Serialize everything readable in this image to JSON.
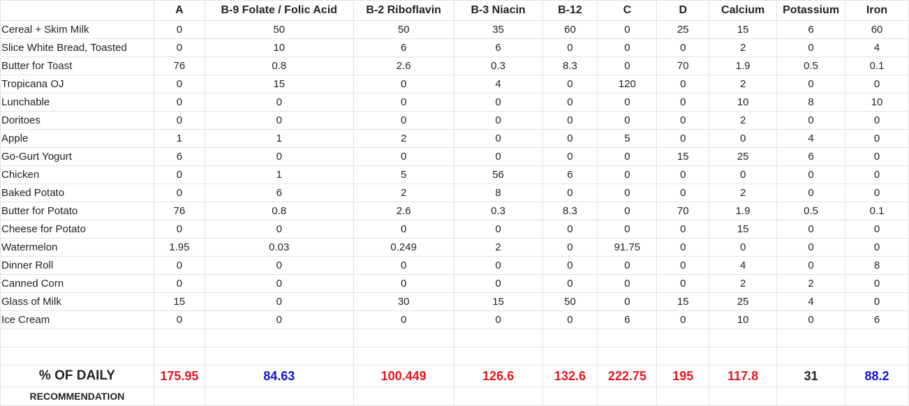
{
  "columns": [
    "A",
    "B-9 Folate / Folic Acid",
    "B-2 Riboflavin",
    "B-3 Niacin",
    "B-12",
    "C",
    "D",
    "Calcium",
    "Potassium",
    "Iron"
  ],
  "rows": [
    {
      "food": "Cereal + Skim Milk",
      "values": [
        "0",
        "50",
        "50",
        "35",
        "60",
        "0",
        "25",
        "15",
        "6",
        "60"
      ]
    },
    {
      "food": "Slice White Bread, Toasted",
      "values": [
        "0",
        "10",
        "6",
        "6",
        "0",
        "0",
        "0",
        "2",
        "0",
        "4"
      ]
    },
    {
      "food": "Butter for Toast",
      "values": [
        "76",
        "0.8",
        "2.6",
        "0.3",
        "8.3",
        "0",
        "70",
        "1.9",
        "0.5",
        "0.1"
      ]
    },
    {
      "food": "Tropicana OJ",
      "values": [
        "0",
        "15",
        "0",
        "4",
        "0",
        "120",
        "0",
        "2",
        "0",
        "0"
      ]
    },
    {
      "food": "Lunchable",
      "values": [
        "0",
        "0",
        "0",
        "0",
        "0",
        "0",
        "0",
        "10",
        "8",
        "10"
      ]
    },
    {
      "food": "Doritoes",
      "values": [
        "0",
        "0",
        "0",
        "0",
        "0",
        "0",
        "0",
        "2",
        "0",
        "0"
      ]
    },
    {
      "food": "Apple",
      "values": [
        "1",
        "1",
        "2",
        "0",
        "0",
        "5",
        "0",
        "0",
        "4",
        "0"
      ]
    },
    {
      "food": "Go-Gurt Yogurt",
      "values": [
        "6",
        "0",
        "0",
        "0",
        "0",
        "0",
        "15",
        "25",
        "6",
        "0"
      ]
    },
    {
      "food": "Chicken",
      "values": [
        "0",
        "1",
        "5",
        "56",
        "6",
        "0",
        "0",
        "0",
        "0",
        "0"
      ]
    },
    {
      "food": "Baked Potato",
      "values": [
        "0",
        "6",
        "2",
        "8",
        "0",
        "0",
        "0",
        "2",
        "0",
        "0"
      ]
    },
    {
      "food": "Butter for Potato",
      "values": [
        "76",
        "0.8",
        "2.6",
        "0.3",
        "8.3",
        "0",
        "70",
        "1.9",
        "0.5",
        "0.1"
      ]
    },
    {
      "food": "Cheese for Potato",
      "values": [
        "0",
        "0",
        "0",
        "0",
        "0",
        "0",
        "0",
        "15",
        "0",
        "0"
      ]
    },
    {
      "food": "Watermelon",
      "values": [
        "1.95",
        "0.03",
        "0.249",
        "2",
        "0",
        "91.75",
        "0",
        "0",
        "0",
        "0"
      ]
    },
    {
      "food": "Dinner Roll",
      "values": [
        "0",
        "0",
        "0",
        "0",
        "0",
        "0",
        "0",
        "4",
        "0",
        "8"
      ]
    },
    {
      "food": "Canned Corn",
      "values": [
        "0",
        "0",
        "0",
        "0",
        "0",
        "0",
        "0",
        "2",
        "2",
        "0"
      ]
    },
    {
      "food": "Glass of Milk",
      "values": [
        "15",
        "0",
        "30",
        "15",
        "50",
        "0",
        "15",
        "25",
        "4",
        "0"
      ]
    },
    {
      "food": "Ice Cream",
      "values": [
        "0",
        "0",
        "0",
        "0",
        "0",
        "6",
        "0",
        "10",
        "0",
        "6"
      ]
    }
  ],
  "totals": {
    "label_line1": "% OF DAILY",
    "label_line2": "RECOMMENDATION",
    "values": [
      "175.95",
      "84.63",
      "100.449",
      "126.6",
      "132.6",
      "222.75",
      "195",
      "117.8",
      "31",
      "88.2"
    ],
    "value_colors": [
      "red",
      "blue",
      "red",
      "red",
      "red",
      "red",
      "red",
      "red",
      "plain",
      "blue"
    ]
  },
  "colors": {
    "over": "#e8161e",
    "under": "#1414d2",
    "neutral": "#222222",
    "grid": "#e2e2e2"
  }
}
